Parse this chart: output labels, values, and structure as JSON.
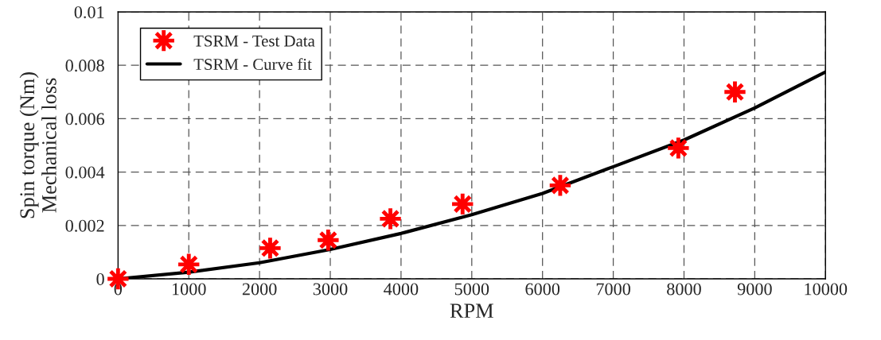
{
  "chart_data": {
    "type": "scatter",
    "xlabel": "RPM",
    "ylabel": "Spin torque (Nm)\nMechanical loss",
    "xlim": [
      0,
      10000
    ],
    "ylim": [
      0,
      0.01
    ],
    "xticks": [
      0,
      1000,
      2000,
      3000,
      4000,
      5000,
      6000,
      7000,
      8000,
      9000,
      10000
    ],
    "yticks": [
      0,
      0.002,
      0.004,
      0.006,
      0.008,
      0.01
    ],
    "grid": true,
    "legend": "top left",
    "series": [
      {
        "name": "TSRM - Test Data",
        "color": "#ff0000",
        "marker": "star",
        "x": [
          0,
          1000,
          2150,
          2970,
          3850,
          4870,
          6250,
          7920,
          8720
        ],
        "values": [
          0,
          0.00054,
          0.00115,
          0.00145,
          0.00225,
          0.0028,
          0.0035,
          0.0049,
          0.007
        ]
      },
      {
        "name": "TSRM - Curve fit",
        "type": "line",
        "color": "#000000",
        "line_style": "solid",
        "x": [
          0,
          1000,
          2000,
          3000,
          4000,
          5000,
          6000,
          7000,
          8000,
          9000,
          10000
        ],
        "values": [
          0,
          0.00025,
          0.0006,
          0.0011,
          0.0017,
          0.0024,
          0.0032,
          0.0042,
          0.0052,
          0.0064,
          0.00775
        ]
      }
    ]
  }
}
